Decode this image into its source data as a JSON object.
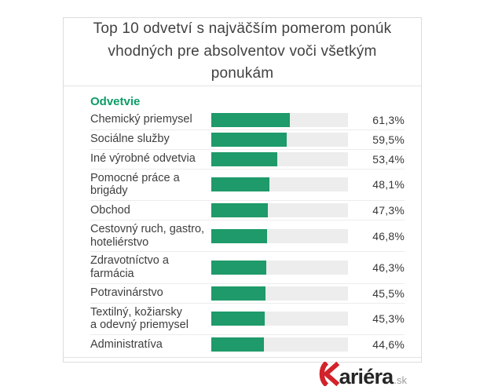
{
  "title": "Top 10 odvetví s najväčším pomerom ponúk\nvhodných pre absolventov voči všetkým ponukám",
  "chart_data": {
    "type": "bar",
    "orientation": "horizontal",
    "title": "Top 10 odvetví s najväčším pomerom ponúk vhodných pre absolventov voči všetkým ponukám",
    "column_header": "Odvetvie",
    "categories": [
      "Chemický priemysel",
      "Sociálne služby",
      "Iné výrobné odvetvia",
      "Pomocné práce a brigády",
      "Obchod",
      "Cestovný ruch, gastro,\nhoteliérstvo",
      "Zdravotníctvo a farmácia",
      "Potravinárstvo",
      "Textilný, kožiarsky\na odevný priemysel",
      "Administratíva"
    ],
    "values": [
      61.3,
      59.5,
      53.4,
      48.1,
      47.3,
      46.8,
      46.3,
      45.5,
      45.3,
      44.6
    ],
    "value_labels": [
      "61,3%",
      "59,5%",
      "53,4%",
      "48,1%",
      "47,3%",
      "46,8%",
      "46,3%",
      "45,5%",
      "45,3%",
      "44,6%"
    ],
    "bar_color": "#1f9a6a",
    "track_color": "#ededed",
    "grid": false,
    "legend": false,
    "value_label_position": "right",
    "bar_scale_pct_of_track": {
      "slope": 1.137,
      "intercept": -12.2
    }
  },
  "footer": {
    "logo_word": "ariéra",
    "logo_tld": ".sk",
    "logo_k_color": "#d2232a",
    "logo_word_color": "#262626",
    "logo_tld_color": "#9b9b9b"
  },
  "colors": {
    "accent_green": "#0c9d67",
    "bar_green": "#1f9a6a",
    "track_gray": "#ededed",
    "border_gray": "#dcdcdc",
    "title_text": "#414141",
    "label_text": "#3e3e3e"
  }
}
